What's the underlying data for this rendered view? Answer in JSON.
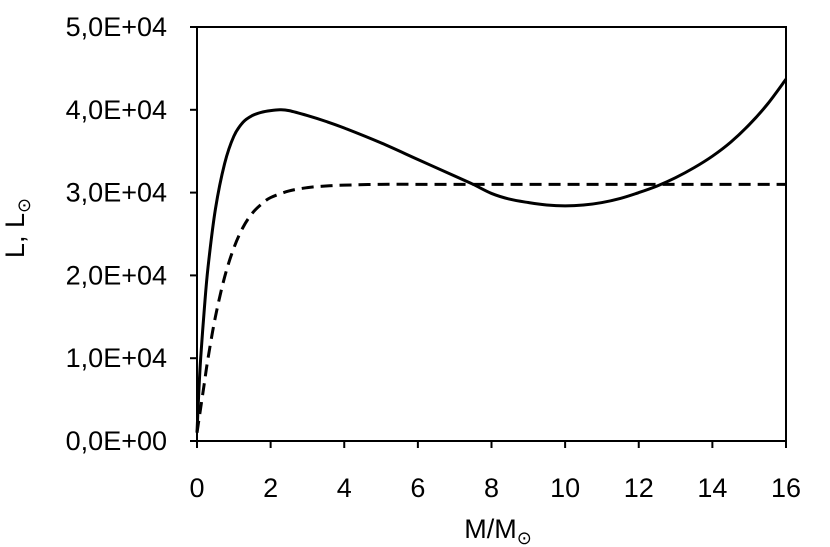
{
  "chart_data": {
    "type": "line",
    "xlabel": "M/M",
    "xlabel_sub": "⊙",
    "ylabel": "L, L",
    "ylabel_sub": "⊙",
    "xlim": [
      0,
      16
    ],
    "ylim": [
      0,
      50000
    ],
    "xticks": [
      0,
      2,
      4,
      6,
      8,
      10,
      12,
      14,
      16
    ],
    "yticks": [
      0,
      10000,
      20000,
      30000,
      40000,
      50000
    ],
    "xtick_labels": [
      "0",
      "2",
      "4",
      "6",
      "8",
      "10",
      "12",
      "14",
      "16"
    ],
    "ytick_labels": [
      "0,0E+00",
      "1,0E+04",
      "2,0E+04",
      "3,0E+04",
      "4,0E+04",
      "5,0E+04"
    ],
    "grid": false,
    "legend": "none",
    "series": [
      {
        "style": "solid",
        "color": "#000000",
        "x": [
          0,
          0.05,
          0.1,
          0.2,
          0.3,
          0.5,
          0.75,
          1.0,
          1.25,
          1.5,
          1.75,
          2.0,
          2.25,
          2.5,
          3.0,
          3.5,
          4.0,
          5.0,
          6.0,
          7.0,
          7.5,
          8.0,
          8.5,
          9.0,
          9.5,
          10.0,
          10.5,
          11.0,
          11.5,
          12.0,
          12.5,
          13.0,
          13.5,
          14.0,
          14.5,
          15.0,
          15.5,
          16.0
        ],
        "y": [
          1000,
          6000,
          10000,
          16000,
          21000,
          28000,
          33500,
          36800,
          38500,
          39300,
          39700,
          39900,
          40000,
          39900,
          39300,
          38600,
          37800,
          36000,
          34000,
          32000,
          31000,
          29900,
          29200,
          28800,
          28500,
          28400,
          28500,
          28800,
          29300,
          30000,
          30800,
          31800,
          33000,
          34400,
          36100,
          38200,
          40700,
          43700
        ]
      },
      {
        "style": "dashed",
        "color": "#000000",
        "x": [
          0,
          0.05,
          0.1,
          0.2,
          0.3,
          0.5,
          0.75,
          1.0,
          1.25,
          1.5,
          1.75,
          2.0,
          2.5,
          3.0,
          3.5,
          4.0,
          5.0,
          6.0,
          8.0,
          10.0,
          12.0,
          14.0,
          16.0
        ],
        "y": [
          1000,
          2500,
          4000,
          7000,
          10000,
          15000,
          19800,
          23300,
          25800,
          27500,
          28600,
          29400,
          30200,
          30600,
          30800,
          30900,
          31000,
          31000,
          31000,
          31000,
          31000,
          31000,
          31000
        ]
      }
    ]
  }
}
